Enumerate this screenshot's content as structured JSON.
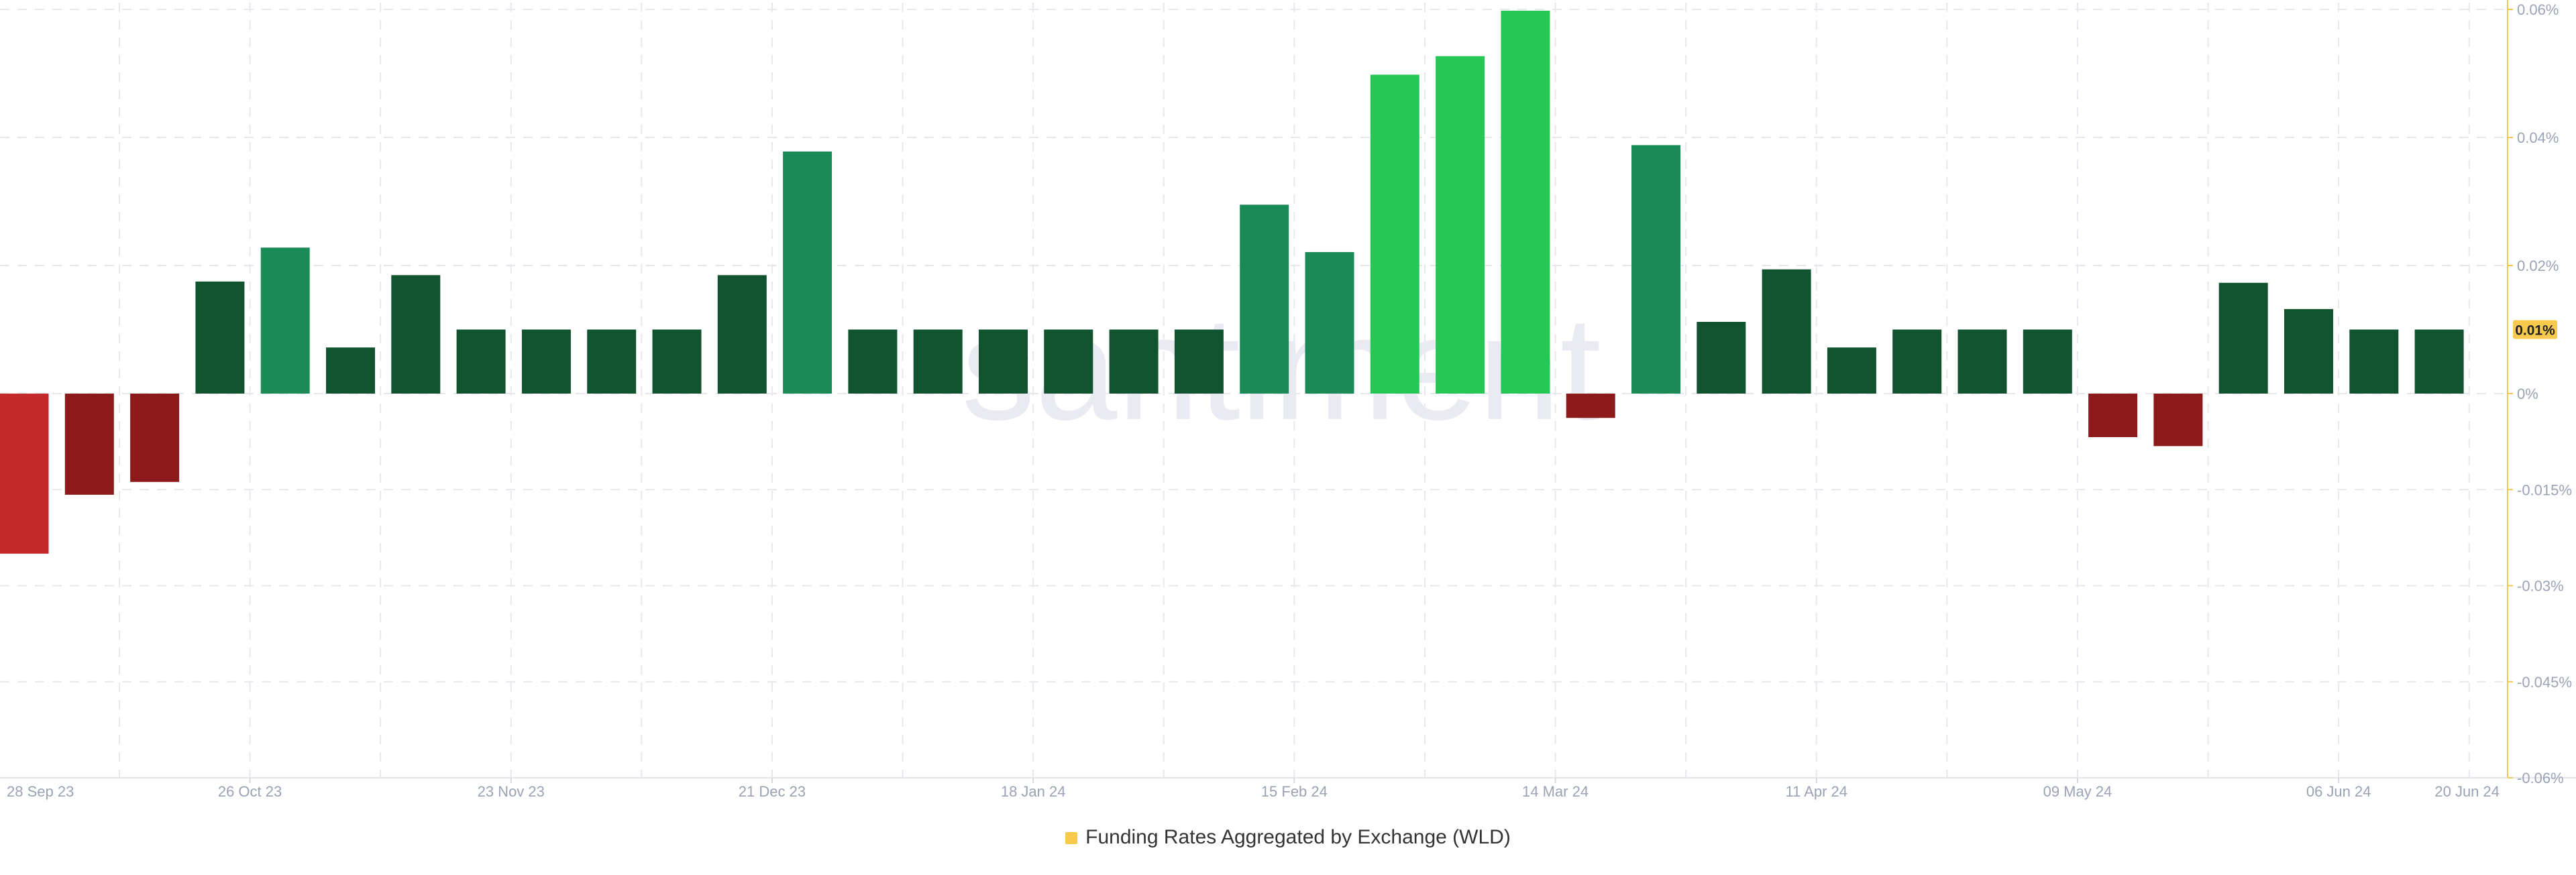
{
  "chart_data": {
    "type": "bar",
    "title": "",
    "xlabel": "",
    "ylabel": "",
    "ylim": [
      -0.06,
      0.06
    ],
    "y_ticks": [
      -0.06,
      -0.045,
      -0.03,
      -0.015,
      0,
      0.02,
      0.04,
      0.06
    ],
    "y_tick_labels": [
      "-0.06%",
      "-0.045%",
      "-0.03%",
      "-0.015%",
      "0%",
      "0.02%",
      "0.04%",
      "0.06%"
    ],
    "x_tick_labels": [
      "28 Sep 23",
      "26 Oct 23",
      "23 Nov 23",
      "21 Dec 23",
      "18 Jan 24",
      "15 Feb 24",
      "14 Mar 24",
      "11 Apr 24",
      "09 May 24",
      "06 Jun 24",
      "20 Jun 24"
    ],
    "x_tick_positions": [
      0,
      4,
      8,
      12,
      16,
      20,
      24,
      28,
      32,
      36,
      38
    ],
    "values": [
      -0.025,
      -0.0158,
      -0.0138,
      0.0175,
      0.0228,
      0.0072,
      0.0185,
      0.01,
      0.01,
      0.01,
      0.01,
      0.0185,
      0.0378,
      0.01,
      0.01,
      0.01,
      0.01,
      0.01,
      0.01,
      0.0295,
      0.0221,
      0.0498,
      0.0527,
      0.0598,
      -0.0038,
      0.0388,
      0.0112,
      0.0194,
      0.0072,
      0.01,
      0.01,
      0.01,
      -0.0068,
      -0.0082,
      0.0173,
      0.0132,
      0.01,
      0.01
    ],
    "current_value": 0.01,
    "current_value_label": "0.01%",
    "series_name": "Funding Rates Aggregated by Exchange (WLD)",
    "legend_position": "bottom",
    "grid": true,
    "watermark": "santiment",
    "colors": {
      "negative_strong": "#c42a2a",
      "negative": "#8c1a1a",
      "positive_low": "#11522f",
      "positive_mid": "#1c8a57",
      "positive_high": "#26c755",
      "axis_line": "#f2c94c",
      "badge": "#f7c94d",
      "grid": "#e6e8ee",
      "tick_text": "#9aa3b5",
      "watermark": "#e9eaf2"
    }
  }
}
